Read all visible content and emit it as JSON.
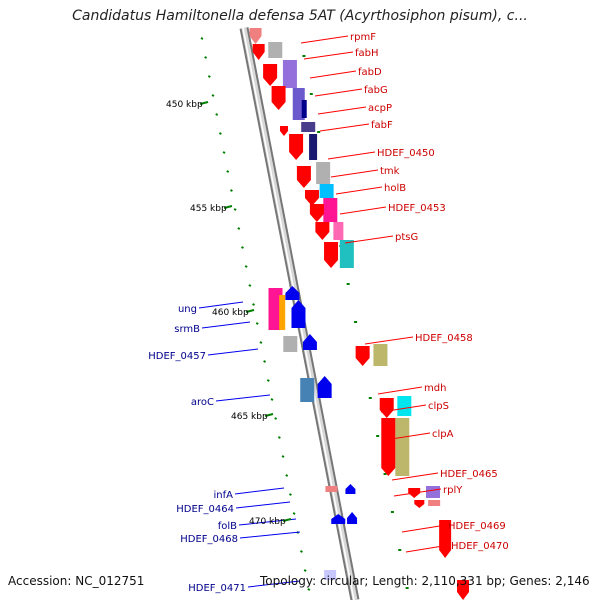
{
  "title": "Candidatus Hamiltonella defensa 5AT (Acyrthosiphon pisum), c...",
  "accession": "Accession: NC_012751",
  "summary": "Topology: circular; Length: 2,110,331 bp; Genes: 2,146",
  "colors": {
    "forward": "#ff0000",
    "reverse": "#0000ee",
    "backbone": "#aaaaaa",
    "ticks": "#008000"
  },
  "scale_labels": [
    "450 kbp",
    "455 kbp",
    "460 kbp",
    "465 kbp",
    "470 kbp"
  ],
  "forward_genes": [
    "rpmF",
    "fabH",
    "fabD",
    "fabG",
    "acpP",
    "fabF",
    "HDEF_0450",
    "tmk",
    "holB",
    "HDEF_0453",
    "ptsG",
    "HDEF_0458",
    "mdh",
    "clpS",
    "clpA",
    "HDEF_0465",
    "rplY",
    "HDEF_0469",
    "HDEF_0470"
  ],
  "reverse_genes": [
    "ung",
    "srmB",
    "HDEF_0457",
    "aroC",
    "infA",
    "HDEF_0464",
    "folB",
    "HDEF_0468",
    "HDEF_0471"
  ]
}
